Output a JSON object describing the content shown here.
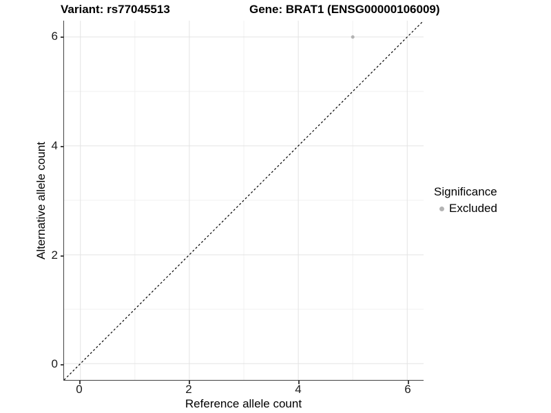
{
  "header": {
    "variant_title": "Variant: rs77045513",
    "gene_title": "Gene: BRAT1 (ENSG00000106009)"
  },
  "axes": {
    "x": {
      "label": "Reference allele count",
      "ticks": [
        "0",
        "2",
        "4",
        "6"
      ]
    },
    "y": {
      "label": "Alternative allele count",
      "ticks_top_to_bottom": [
        "6",
        "4",
        "2",
        "0"
      ]
    }
  },
  "legend": {
    "title": "Significance",
    "items": [
      {
        "label": "Excluded",
        "color": "#b3b3b3"
      }
    ]
  },
  "chart_data": {
    "type": "scatter",
    "title": "Variant: rs77045513 — Gene: BRAT1 (ENSG00000106009)",
    "xlabel": "Reference allele count",
    "ylabel": "Alternative allele count",
    "xlim": [
      -0.3,
      6.3
    ],
    "ylim": [
      -0.3,
      6.3
    ],
    "x_ticks": [
      0,
      2,
      4,
      6
    ],
    "y_ticks": [
      0,
      2,
      4,
      6
    ],
    "grid": true,
    "grid_major_color": "#e3e3e3",
    "grid_minor_color": "#f0f0f0",
    "legend_position": "right",
    "legend_title": "Significance",
    "series": [
      {
        "name": "Excluded",
        "color": "#b3b3b3",
        "point_radius": 2.5,
        "points": [
          {
            "x": 5,
            "y": 6
          }
        ]
      }
    ],
    "reference_line": {
      "type": "identity y=x",
      "style": "dashed",
      "color": "#000000",
      "from": [
        -0.3,
        -0.3
      ],
      "to": [
        6.3,
        6.3
      ]
    }
  }
}
